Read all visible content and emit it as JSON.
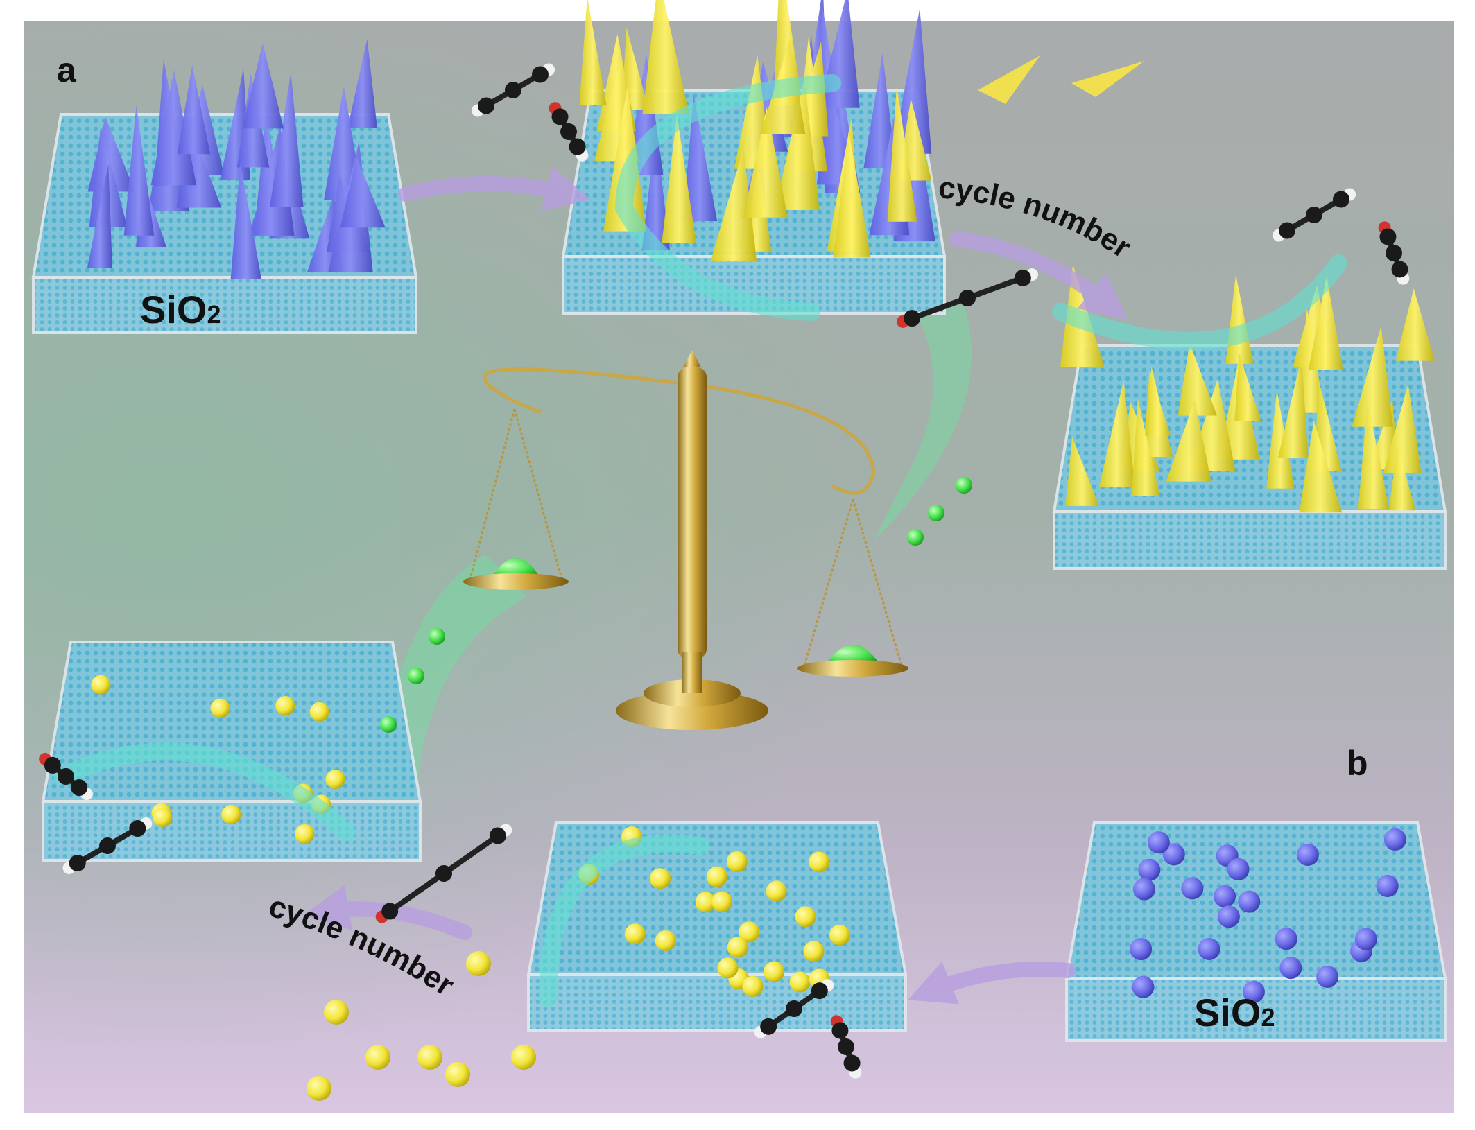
{
  "panels": [
    {
      "label": "a",
      "material": {
        "base": "SiO",
        "sub": "2"
      },
      "process": "cycle number"
    },
    {
      "label": "b",
      "material": {
        "base": "SiO",
        "sub": "2"
      },
      "process": "cycle number"
    }
  ]
}
